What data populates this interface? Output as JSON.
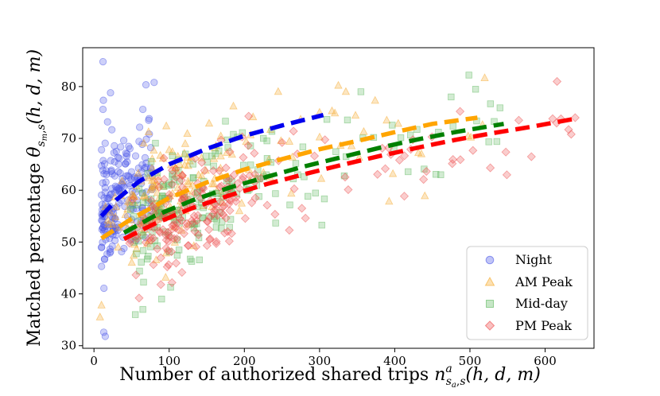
{
  "chart_data": {
    "type": "scatter",
    "xlabel_parts": [
      "Number of authorized shared trips ",
      "n",
      "a",
      "s",
      "a",
      ",",
      "s",
      "(h, d, m)"
    ],
    "ylabel_parts": [
      "Matched percentage ",
      "θ",
      "s",
      "m",
      ",",
      "s",
      "(h, d, m)"
    ],
    "xlim": [
      -15,
      665
    ],
    "ylim": [
      29.5,
      87.5
    ],
    "xticks": [
      0,
      100,
      200,
      300,
      400,
      500,
      600
    ],
    "yticks": [
      30,
      40,
      50,
      60,
      70,
      80
    ],
    "legend_position": "lower right",
    "series": [
      {
        "name": "Night",
        "marker": "circle",
        "color": "#4a56e8",
        "fit_color": "#0000ee",
        "x_range": [
          10,
          78
        ],
        "y_spread": 6.5,
        "n_points": 200,
        "fit": [
          [
            10,
            55.0
          ],
          [
            30,
            58.2
          ],
          [
            60,
            61.7
          ],
          [
            100,
            65.0
          ],
          [
            150,
            68.0
          ],
          [
            200,
            70.5
          ],
          [
            250,
            72.5
          ],
          [
            305,
            74.5
          ]
        ],
        "outliers": [
          [
            12,
            84.8
          ],
          [
            80,
            80.8
          ],
          [
            22,
            78.8
          ],
          [
            12,
            75.6
          ],
          [
            65,
            75.6
          ],
          [
            15,
            31.8
          ],
          [
            13,
            32.6
          ]
        ]
      },
      {
        "name": "AM Peak",
        "marker": "triangle",
        "color": "#f5a623",
        "fit_color": "#ffa500",
        "x_range": [
          15,
          520
        ],
        "y_spread": 5.5,
        "n_points": 190,
        "fit": [
          [
            10,
            50.7
          ],
          [
            50,
            54.5
          ],
          [
            100,
            58.5
          ],
          [
            150,
            61.5
          ],
          [
            200,
            64.0
          ],
          [
            250,
            66.0
          ],
          [
            300,
            67.9
          ],
          [
            350,
            69.5
          ],
          [
            400,
            71.2
          ],
          [
            450,
            72.8
          ],
          [
            510,
            74.0
          ]
        ],
        "outliers": [
          [
            8,
            35.5
          ],
          [
            10,
            37.8
          ],
          [
            245,
            79.0
          ],
          [
            325,
            80.2
          ],
          [
            335,
            79.0
          ],
          [
            300,
            75.0
          ]
        ]
      },
      {
        "name": "Mid-day",
        "marker": "square",
        "color": "#5cb85c",
        "fit_color": "#008000",
        "x_range": [
          40,
          540
        ],
        "y_spread": 5.0,
        "n_points": 200,
        "fit": [
          [
            40,
            51.8
          ],
          [
            80,
            55.0
          ],
          [
            130,
            58.0
          ],
          [
            180,
            60.5
          ],
          [
            230,
            62.6
          ],
          [
            280,
            64.6
          ],
          [
            330,
            66.4
          ],
          [
            380,
            68.2
          ],
          [
            430,
            69.8
          ],
          [
            480,
            71.2
          ],
          [
            545,
            72.8
          ]
        ],
        "outliers": [
          [
            55,
            36.0
          ],
          [
            65,
            37.0
          ],
          [
            90,
            39.0
          ],
          [
            355,
            79.0
          ],
          [
            475,
            78.0
          ],
          [
            540,
            75.9
          ]
        ]
      },
      {
        "name": "PM Peak",
        "marker": "diamond",
        "color": "#ee4a4a",
        "fit_color": "#ff0000",
        "x_range": [
          40,
          640
        ],
        "y_spread": 5.0,
        "n_points": 210,
        "fit": [
          [
            40,
            50.6
          ],
          [
            80,
            53.5
          ],
          [
            130,
            56.5
          ],
          [
            180,
            59.0
          ],
          [
            230,
            61.2
          ],
          [
            280,
            63.1
          ],
          [
            330,
            64.9
          ],
          [
            380,
            66.6
          ],
          [
            430,
            68.2
          ],
          [
            480,
            69.7
          ],
          [
            530,
            71.0
          ],
          [
            580,
            72.2
          ],
          [
            640,
            73.8
          ]
        ],
        "outliers": [
          [
            60,
            39.2
          ],
          [
            640,
            74.0
          ],
          [
            610,
            73.8
          ],
          [
            565,
            73.5
          ]
        ]
      }
    ]
  },
  "legend": {
    "items": [
      "Night",
      "AM Peak",
      "Mid-day",
      "PM Peak"
    ]
  }
}
